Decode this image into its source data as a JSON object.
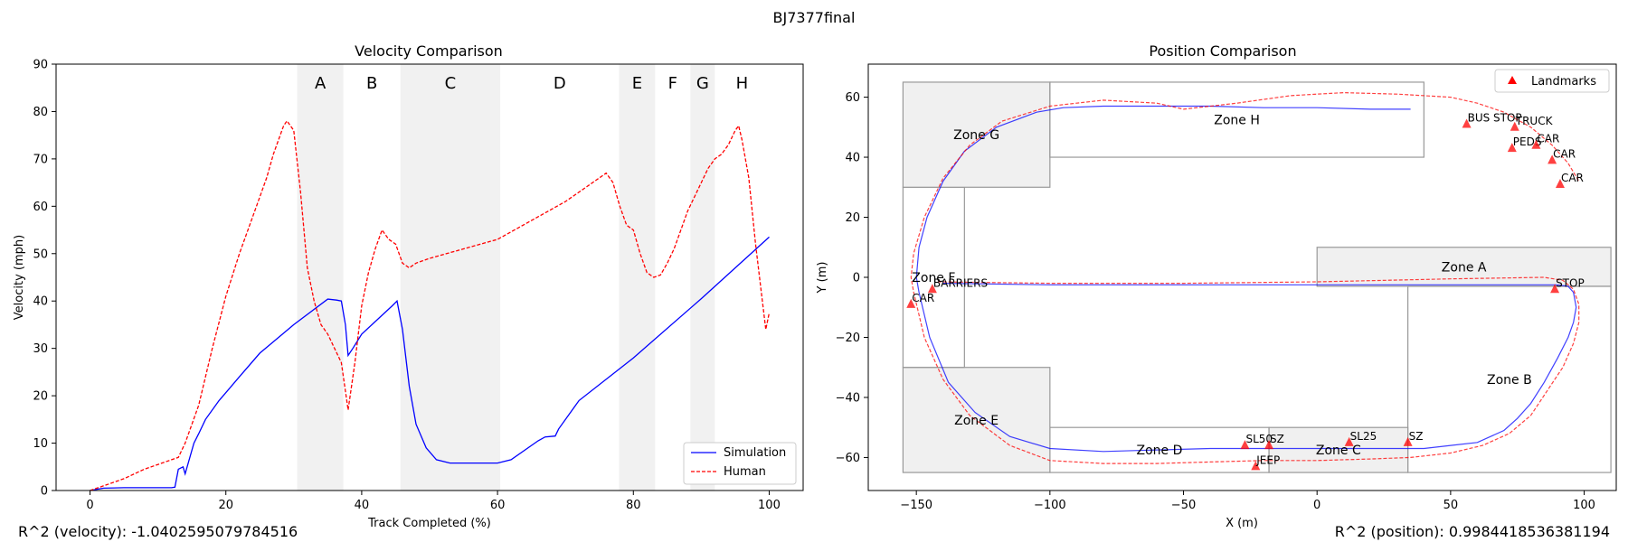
{
  "suptitle": "BJ7377final",
  "r2_velocity": "R^2 (velocity): -1.0402595079784516",
  "r2_position": "R^2 (position): 0.9984418536381194",
  "colors": {
    "simulation": "#0000ff",
    "human": "#ff0000",
    "landmark": "#ff0000",
    "band": "#e6e6e6",
    "zone_fill": "#f0f0f0",
    "zone_edge": "#999999"
  },
  "chart_data": [
    {
      "type": "line",
      "title": "Velocity Comparison",
      "xlabel": "Track Completed (%)",
      "ylabel": "Velocity (mph)",
      "xlim": [
        -5,
        105
      ],
      "ylim": [
        0,
        90
      ],
      "xticks": [
        0,
        20,
        40,
        60,
        80,
        100
      ],
      "yticks": [
        0,
        10,
        20,
        30,
        40,
        50,
        60,
        70,
        80,
        90
      ],
      "legend_position": "lower-right",
      "bands": [
        {
          "label": "A",
          "x0": 30.5,
          "x1": 37.3,
          "shaded": true
        },
        {
          "label": "B",
          "x0": 37.3,
          "x1": 45.7,
          "shaded": false
        },
        {
          "label": "C",
          "x0": 45.7,
          "x1": 60.4,
          "shaded": true
        },
        {
          "label": "D",
          "x0": 60.4,
          "x1": 77.9,
          "shaded": false
        },
        {
          "label": "E",
          "x0": 77.9,
          "x1": 83.2,
          "shaded": true
        },
        {
          "label": "F",
          "x0": 83.2,
          "x1": 88.4,
          "shaded": false
        },
        {
          "label": "G",
          "x0": 88.4,
          "x1": 92.0,
          "shaded": true
        },
        {
          "label": "H",
          "x0": 92.0,
          "x1": 100.0,
          "shaded": false
        }
      ],
      "series": [
        {
          "name": "Simulation",
          "style": "solid",
          "x": [
            0,
            2,
            5,
            8,
            10,
            12,
            12.5,
            13,
            13.7,
            14,
            15.3,
            16,
            17,
            19,
            22,
            25,
            30,
            35,
            36.3,
            37,
            37.6,
            38,
            38.7,
            40,
            44.5,
            45.2,
            46,
            47,
            48,
            49.5,
            51,
            53,
            60,
            62,
            66,
            67,
            68.5,
            69,
            72,
            80,
            90,
            100
          ],
          "y": [
            0,
            0.5,
            0.6,
            0.6,
            0.6,
            0.6,
            0.7,
            4.5,
            5,
            3.5,
            10,
            12,
            15,
            19,
            24,
            29,
            35,
            40.4,
            40.2,
            40,
            35,
            28.5,
            30,
            33,
            39,
            40,
            34,
            22,
            14,
            9,
            6.5,
            5.8,
            5.8,
            6.5,
            10.5,
            11.3,
            11.5,
            13,
            19,
            28,
            40.5,
            53.5
          ]
        },
        {
          "name": "Human",
          "style": "dashed",
          "x": [
            0,
            2,
            5,
            8,
            10,
            12,
            13,
            14,
            15,
            16,
            18,
            20,
            22,
            24,
            26,
            27,
            28,
            28.5,
            29,
            30,
            31,
            32,
            33,
            34,
            35,
            36,
            37,
            38,
            39,
            40,
            41,
            42,
            43,
            44,
            45,
            46,
            47,
            48,
            50,
            55,
            60,
            65,
            70,
            73,
            75,
            76,
            77,
            78,
            79,
            80,
            81,
            82,
            83,
            84,
            85,
            86,
            87,
            88,
            89,
            90,
            91,
            92,
            93,
            94,
            95,
            95.5,
            96,
            97,
            98,
            99,
            99.5,
            100
          ],
          "y": [
            0,
            1,
            2.5,
            4.5,
            5.5,
            6.5,
            7,
            10,
            14,
            18,
            30,
            41,
            50,
            58,
            66,
            71,
            75,
            77,
            78,
            76,
            63,
            47,
            40,
            35,
            33,
            30,
            27,
            17,
            27,
            39,
            46,
            51,
            55,
            53,
            52,
            48,
            47,
            48,
            49,
            51,
            53,
            57,
            61,
            64,
            66,
            67,
            65,
            60,
            56,
            55,
            50,
            46,
            45,
            45.5,
            48,
            51,
            55,
            59,
            62,
            65,
            68,
            70,
            71,
            73,
            76,
            77,
            74,
            66,
            52,
            40,
            34,
            37.5
          ]
        }
      ]
    },
    {
      "type": "line",
      "title": "Position Comparison",
      "xlabel": "X (m)",
      "ylabel": "Y (m)",
      "xlim": [
        -168,
        112
      ],
      "ylim": [
        -71,
        71
      ],
      "xticks": [
        -150,
        -100,
        -50,
        0,
        50,
        100
      ],
      "yticks": [
        -60,
        -40,
        -20,
        0,
        20,
        40,
        60
      ],
      "legend_position": "upper-right",
      "legend": [
        "Landmarks"
      ],
      "zones": [
        {
          "name": "Zone A",
          "x0": 0,
          "x1": 110,
          "y0": -3,
          "y1": 10,
          "filled": true
        },
        {
          "name": "Zone B",
          "x0": 34,
          "x1": 110,
          "y0": -65,
          "y1": -3,
          "filled": false
        },
        {
          "name": "Zone C",
          "x0": -18,
          "x1": 34,
          "y0": -65,
          "y1": -50,
          "filled": true
        },
        {
          "name": "Zone D",
          "x0": -100,
          "x1": -18,
          "y0": -65,
          "y1": -50,
          "filled": false
        },
        {
          "name": "Zone E",
          "x0": -155,
          "x1": -100,
          "y0": -65,
          "y1": -30,
          "filled": true
        },
        {
          "name": "Zone F",
          "x0": -155,
          "x1": -132,
          "y0": -30,
          "y1": 30,
          "filled": false
        },
        {
          "name": "Zone G",
          "x0": -155,
          "x1": -100,
          "y0": 30,
          "y1": 65,
          "filled": true
        },
        {
          "name": "Zone H",
          "x0": -100,
          "x1": 40,
          "y0": 40,
          "y1": 65,
          "filled": false
        }
      ],
      "landmarks": [
        {
          "label": "BUS STOP",
          "x": 56,
          "y": 51
        },
        {
          "label": "TRUCK",
          "x": 74,
          "y": 50
        },
        {
          "label": "PEDS",
          "x": 73,
          "y": 43
        },
        {
          "label": "CAR",
          "x": 82,
          "y": 44
        },
        {
          "label": "CAR",
          "x": 88,
          "y": 39
        },
        {
          "label": "CAR",
          "x": 91,
          "y": 31
        },
        {
          "label": "STOP",
          "x": 89,
          "y": -4
        },
        {
          "label": "BARRIERS",
          "x": -144,
          "y": -4
        },
        {
          "label": "CAR",
          "x": -152,
          "y": -9
        },
        {
          "label": "SL50",
          "x": -27,
          "y": -56
        },
        {
          "label": "SZ",
          "x": -18,
          "y": -56
        },
        {
          "label": "JEEP",
          "x": -23,
          "y": -63
        },
        {
          "label": "SL25",
          "x": 12,
          "y": -55
        },
        {
          "label": "SZ",
          "x": 34,
          "y": -55
        }
      ],
      "series": [
        {
          "name": "Simulation",
          "style": "solid",
          "x": [
            -140,
            -100,
            -50,
            0,
            50,
            90,
            94,
            96,
            97,
            96,
            94,
            90,
            85,
            80,
            75,
            70,
            60,
            50,
            40,
            20,
            0,
            -20,
            -40,
            -60,
            -80,
            -100,
            -115,
            -128,
            -138,
            -145,
            -149,
            -150,
            -149,
            -146,
            -140,
            -132,
            -120,
            -105,
            -95,
            -80,
            -60,
            -40,
            -20,
            0,
            20,
            35
          ],
          "y": [
            -2,
            -2.5,
            -2.5,
            -2.5,
            -2.5,
            -2.5,
            -3,
            -5,
            -10,
            -15,
            -20,
            -27,
            -35,
            -42,
            -47,
            -51,
            -55,
            -56,
            -57,
            -57,
            -57,
            -57,
            -57,
            -57.5,
            -58,
            -57,
            -53,
            -45,
            -35,
            -20,
            -5,
            0,
            10,
            20,
            32,
            42,
            50,
            55,
            56.5,
            57,
            57,
            57,
            56.5,
            56.5,
            56,
            56
          ]
        },
        {
          "name": "Human",
          "style": "dashed",
          "x": [
            -142,
            -100,
            -50,
            0,
            50,
            85,
            92,
            96,
            98,
            98,
            96,
            92,
            86,
            80,
            72,
            62,
            50,
            35,
            20,
            0,
            -20,
            -40,
            -60,
            -80,
            -100,
            -115,
            -130,
            -140,
            -147,
            -151,
            -152,
            -151,
            -147,
            -140,
            -130,
            -118,
            -100,
            -80,
            -60,
            -50,
            -30,
            -10,
            0,
            10,
            30,
            50,
            60,
            70,
            80,
            88,
            94,
            98
          ],
          "y": [
            -1.5,
            -2,
            -2,
            -1.5,
            -0.5,
            0,
            -1,
            -4,
            -9,
            -15,
            -22,
            -30,
            -38,
            -46,
            -52,
            -56,
            -58.5,
            -60,
            -60.5,
            -61,
            -61,
            -61.5,
            -62,
            -62,
            -61,
            -56,
            -46,
            -34,
            -20,
            -5,
            0,
            8,
            20,
            33,
            44,
            52,
            57,
            59,
            58,
            56,
            58,
            60.5,
            61,
            61.5,
            61,
            60,
            58,
            55,
            50,
            44,
            38,
            32
          ]
        }
      ]
    }
  ]
}
